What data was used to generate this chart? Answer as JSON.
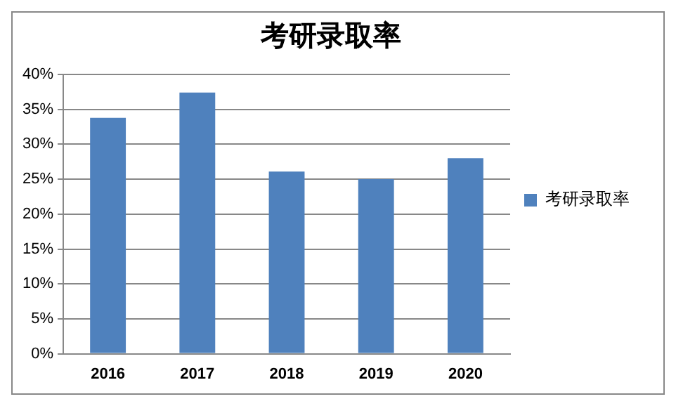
{
  "chart_data": {
    "type": "bar",
    "title": "考研录取率",
    "categories": [
      "2016",
      "2017",
      "2018",
      "2019",
      "2020"
    ],
    "series": [
      {
        "name": "考研录取率",
        "color": "#4f81bd",
        "values": [
          33.8,
          37.4,
          26.1,
          25.0,
          28.0
        ]
      }
    ],
    "ylim": [
      0,
      40
    ],
    "yticks": [
      {
        "value": 0,
        "label": "0%"
      },
      {
        "value": 5,
        "label": "5%"
      },
      {
        "value": 10,
        "label": "10%"
      },
      {
        "value": 15,
        "label": "15%"
      },
      {
        "value": 20,
        "label": "20%"
      },
      {
        "value": 25,
        "label": "25%"
      },
      {
        "value": 30,
        "label": "30%"
      },
      {
        "value": 35,
        "label": "35%"
      },
      {
        "value": 40,
        "label": "40%"
      }
    ],
    "grid": "y",
    "legend": "right"
  }
}
